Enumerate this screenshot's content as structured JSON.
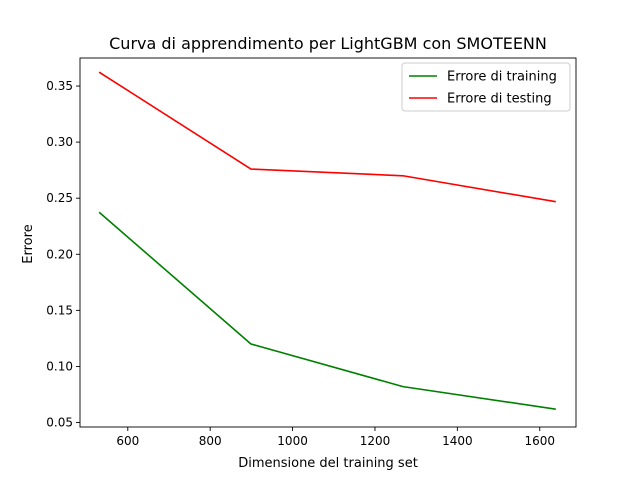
{
  "chart_data": {
    "type": "line",
    "title": "Curva di apprendimento per LightGBM con SMOTEENN",
    "xlabel": "Dimensione del training set",
    "ylabel": "Errore",
    "xlim": [
      484,
      1688
    ],
    "ylim": [
      0.046,
      0.375
    ],
    "xticks": [
      600,
      800,
      1000,
      1200,
      1400,
      1600
    ],
    "yticks": [
      0.05,
      0.1,
      0.15,
      0.2,
      0.25,
      0.3,
      0.35
    ],
    "ytick_labels": [
      "0.05",
      "0.10",
      "0.15",
      "0.20",
      "0.25",
      "0.30",
      "0.35"
    ],
    "grid": false,
    "legend": "top-right",
    "x": [
      532,
      899,
      1268,
      1637
    ],
    "series": [
      {
        "name": "Errore di training",
        "color": "#008000",
        "values": [
          0.237,
          0.12,
          0.082,
          0.062
        ]
      },
      {
        "name": "Errore di testing",
        "color": "#ff0000",
        "values": [
          0.362,
          0.276,
          0.27,
          0.247
        ]
      }
    ]
  }
}
